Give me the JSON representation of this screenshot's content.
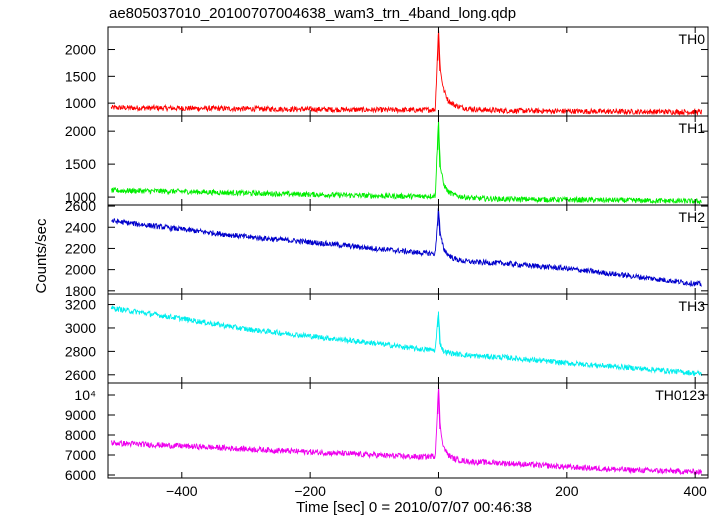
{
  "title": "ae805037010_20100707004638_wam3_trn_4band_long.qdp",
  "ylabel": "Counts/sec",
  "xlabel": "Time [sec] 0 = 2010/07/07 00:46:38",
  "chart_data": {
    "type": "line",
    "title": "ae805037010_20100707004638_wam3_trn_4band_long.qdp",
    "xlabel": "Time [sec] 0 = 2010/07/07 00:46:38",
    "ylabel": "Counts/sec",
    "xlim": [
      -515,
      420
    ],
    "x_ticks": [
      -400,
      -200,
      0,
      200,
      400
    ],
    "x_tick_labels": [
      "−400",
      "−200",
      "0",
      "200",
      "400"
    ],
    "grid": false,
    "panels": [
      {
        "label": "TH0",
        "color": "#ff0000",
        "ylim": [
          760,
          2420
        ],
        "y_ticks": [
          1000,
          1500,
          2000
        ],
        "y_tick_labels": [
          "1000",
          "1500",
          "2000"
        ],
        "series": {
          "x": [
            -510,
            -400,
            -300,
            -200,
            -100,
            -30,
            -5,
            0,
            3,
            8,
            15,
            25,
            40,
            60,
            100,
            200,
            300,
            410
          ],
          "y": [
            915,
            905,
            895,
            885,
            875,
            870,
            880,
            2400,
            1600,
            1250,
            1050,
            960,
            910,
            880,
            860,
            850,
            840,
            835
          ]
        }
      },
      {
        "label": "TH1",
        "color": "#00ee00",
        "ylim": [
          880,
          2230
        ],
        "y_ticks": [
          1000,
          1500,
          2000
        ],
        "y_tick_labels": [
          "1000",
          "1500",
          "2000"
        ],
        "series": {
          "x": [
            -510,
            -400,
            -300,
            -200,
            -100,
            -30,
            -5,
            0,
            3,
            8,
            15,
            25,
            40,
            60,
            100,
            200,
            300,
            410
          ],
          "y": [
            1100,
            1085,
            1060,
            1040,
            1020,
            1010,
            1020,
            2180,
            1450,
            1200,
            1080,
            1030,
            1000,
            980,
            970,
            960,
            950,
            935
          ]
        }
      },
      {
        "label": "TH2",
        "color": "#0000cc",
        "ylim": [
          1770,
          2610
        ],
        "y_ticks": [
          1800,
          2000,
          2200,
          2400,
          2600
        ],
        "y_tick_labels": [
          "1800",
          "2000",
          "2200",
          "2400",
          "2600"
        ],
        "series": {
          "x": [
            -510,
            -400,
            -300,
            -200,
            -100,
            -30,
            -5,
            0,
            3,
            8,
            15,
            25,
            40,
            60,
            100,
            200,
            300,
            410
          ],
          "y": [
            2460,
            2380,
            2310,
            2260,
            2200,
            2160,
            2150,
            2590,
            2320,
            2200,
            2140,
            2100,
            2080,
            2070,
            2060,
            2010,
            1940,
            1860
          ]
        }
      },
      {
        "label": "TH3",
        "color": "#00eeee",
        "ylim": [
          2530,
          3290
        ],
        "y_ticks": [
          2600,
          2800,
          3000,
          3200
        ],
        "y_tick_labels": [
          "2600",
          "2800",
          "3000",
          "3200"
        ],
        "series": {
          "x": [
            -510,
            -400,
            -300,
            -200,
            -100,
            -30,
            -5,
            0,
            3,
            8,
            15,
            25,
            40,
            60,
            100,
            200,
            300,
            410
          ],
          "y": [
            3170,
            3080,
            2990,
            2930,
            2870,
            2820,
            2810,
            3140,
            2860,
            2800,
            2790,
            2780,
            2770,
            2760,
            2750,
            2700,
            2660,
            2610
          ]
        }
      },
      {
        "label": "TH0123",
        "color": "#ee00ee",
        "ylim": [
          5850,
          10600
        ],
        "y_ticks": [
          6000,
          7000,
          8000,
          9000,
          10000
        ],
        "y_tick_labels": [
          "6000",
          "7000",
          "8000",
          "9000",
          "10⁴"
        ],
        "series": {
          "x": [
            -510,
            -400,
            -300,
            -200,
            -100,
            -30,
            -5,
            0,
            3,
            8,
            15,
            25,
            40,
            60,
            100,
            200,
            300,
            410
          ],
          "y": [
            7600,
            7450,
            7300,
            7150,
            7000,
            6900,
            6950,
            10450,
            8300,
            7400,
            7000,
            6800,
            6700,
            6650,
            6600,
            6400,
            6250,
            6150
          ]
        }
      }
    ]
  }
}
